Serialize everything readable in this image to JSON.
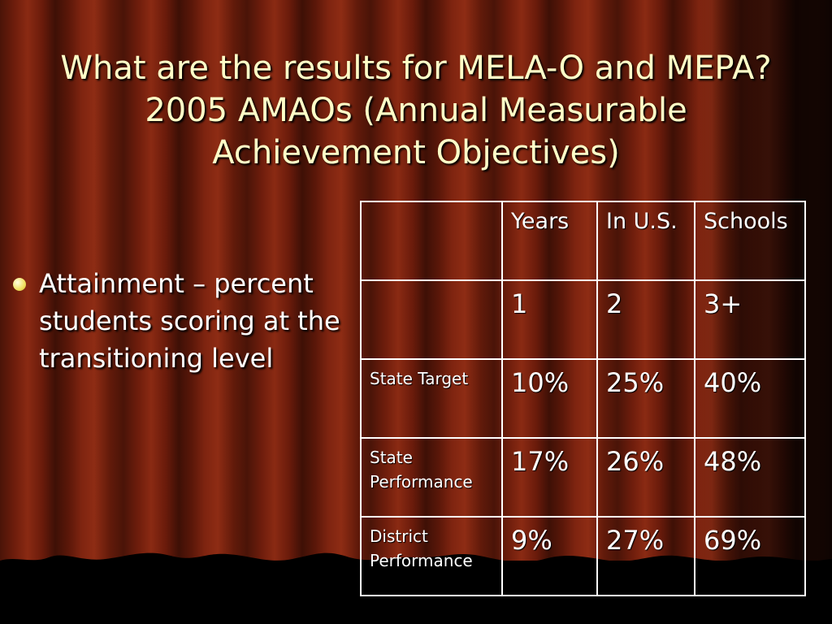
{
  "slide": {
    "title_lines": [
      "What are the results for MELA-O and MEPA?",
      "2005 AMAOs (Annual Measurable",
      "Achievement Objectives)"
    ],
    "bullets": [
      "Attainment – percent students scoring at the transitioning level"
    ],
    "colors": {
      "title": "#ffffc8",
      "curtain": "#6e1d0c",
      "bullet": "#f0e060"
    }
  },
  "table": {
    "header": [
      "",
      "Years",
      "In U.S.",
      "Schools"
    ],
    "rows": [
      [
        "",
        "1",
        "2",
        "3+"
      ],
      [
        "State Target",
        "10%",
        "25%",
        "40%"
      ],
      [
        "State Performance",
        "17%",
        "26%",
        "48%"
      ],
      [
        "District Performance",
        "9%",
        "27%",
        "69%"
      ]
    ]
  }
}
